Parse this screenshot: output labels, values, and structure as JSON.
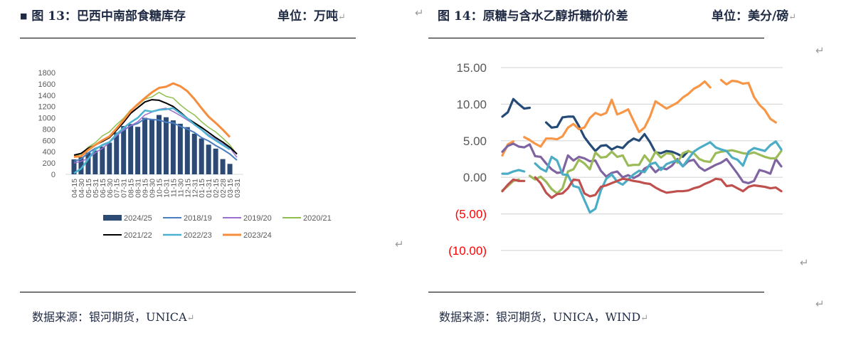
{
  "left_panel": {
    "title": "图 13：巴西中南部食糖库存",
    "unit": "单位：万吨",
    "source": "数据来源：银河期货，UNICA"
  },
  "right_panel": {
    "title": "图 14：原糖与含水乙醇折糖价价差",
    "unit": "单位：美分/磅",
    "source": "数据来源：银河期货，UNICA，WIND"
  },
  "return_mark": "↵",
  "bullet": "■",
  "chart_data": [
    {
      "type": "bar+line",
      "title": "巴西中南部食糖库存",
      "unit": "万吨",
      "ylim": [
        0,
        1800
      ],
      "yticks": [
        0,
        200,
        400,
        600,
        800,
        1000,
        1200,
        1400,
        1600,
        1800
      ],
      "grid": false,
      "legend_position": "bottom",
      "categories": [
        "04-15",
        "04-30",
        "05-15",
        "05-31",
        "06-15",
        "06-30",
        "07-15",
        "07-31",
        "08-15",
        "08-31",
        "09-15",
        "09-30",
        "10-15",
        "10-31",
        "11-15",
        "11-30",
        "12-15",
        "12-31",
        "01-15",
        "01-31",
        "02-15",
        "02-28",
        "03-15",
        "03-31"
      ],
      "series": [
        {
          "name": "2024/25",
          "kind": "bar",
          "color": "#2c4a73",
          "values": [
            265,
            310,
            385,
            420,
            490,
            560,
            740,
            855,
            890,
            840,
            1000,
            980,
            1050,
            1010,
            955,
            895,
            835,
            720,
            635,
            525,
            455,
            270,
            185,
            null
          ]
        },
        {
          "name": "2018/19",
          "kind": "line",
          "color": "#4a7ebf",
          "width": 2,
          "values": [
            230,
            270,
            380,
            460,
            510,
            570,
            690,
            780,
            860,
            900,
            985,
            970,
            960,
            920,
            910,
            850,
            800,
            740,
            650,
            590,
            510,
            440,
            360,
            250
          ]
        },
        {
          "name": "2019/20",
          "kind": "line",
          "color": "#9b6fd0",
          "width": 1.5,
          "values": [
            200,
            230,
            280,
            380,
            460,
            560,
            680,
            790,
            860,
            930,
            1050,
            1100,
            1150,
            1170,
            1110,
            1040,
            960,
            880,
            790,
            700,
            620,
            540,
            470,
            300
          ]
        },
        {
          "name": "2020/21",
          "kind": "line",
          "color": "#8fbf4e",
          "width": 1.5,
          "values": [
            320,
            360,
            480,
            560,
            680,
            750,
            880,
            990,
            1140,
            1220,
            1330,
            1370,
            1450,
            1380,
            1350,
            1230,
            1130,
            1050,
            930,
            830,
            750,
            640,
            520,
            350
          ]
        },
        {
          "name": "2021/22",
          "kind": "line",
          "color": "#000000",
          "width": 2,
          "values": [
            340,
            370,
            460,
            520,
            580,
            650,
            780,
            920,
            1080,
            1180,
            1280,
            1320,
            1310,
            1260,
            1200,
            1100,
            990,
            910,
            830,
            740,
            650,
            570,
            480,
            360
          ]
        },
        {
          "name": "2022/23",
          "kind": "line",
          "color": "#4bb3d1",
          "width": 2.5,
          "values": [
            20,
            100,
            270,
            440,
            520,
            570,
            710,
            820,
            920,
            1000,
            1130,
            1110,
            1140,
            1150,
            1170,
            1080,
            990,
            880,
            790,
            680,
            600,
            520,
            440,
            null
          ]
        },
        {
          "name": "2023/24",
          "kind": "line",
          "color": "#f58d3d",
          "width": 3,
          "values": [
            310,
            320,
            430,
            520,
            600,
            670,
            810,
            960,
            1120,
            1240,
            1350,
            1450,
            1530,
            1550,
            1610,
            1560,
            1470,
            1330,
            1170,
            1020,
            910,
            790,
            660,
            null
          ]
        }
      ]
    },
    {
      "type": "line",
      "title": "原糖与含水乙醇折糖价价差",
      "unit": "美分/磅",
      "ylim": [
        -10,
        15
      ],
      "yticks": [
        15,
        10,
        5,
        0,
        -5,
        -10
      ],
      "ytick_labels": [
        "15.00",
        "10.00",
        "5.00",
        "0.00",
        "(5.00)",
        "(10.00)"
      ],
      "negative_label_color": "#ff0000",
      "grid": true,
      "x_count": 52,
      "series": [
        {
          "name": "series-navy",
          "color": "#254a76",
          "values": [
            8.3,
            8.9,
            10.7,
            10.0,
            9.4,
            9.5,
            null,
            null,
            7.5,
            6.8,
            6.9,
            8.2,
            8.3,
            8.3,
            7.0,
            5.5,
            4.5,
            3.6,
            4.3,
            4.4,
            3.8,
            4.2,
            4.0,
            4.8,
            5.3,
            5.0,
            5.9,
            4.8,
            3.4,
            3.3,
            3.6,
            3.5,
            3.2,
            2.8,
            3.6,
            null,
            null,
            null,
            null,
            null,
            null,
            null,
            null,
            null,
            null,
            null,
            null,
            null,
            null,
            null,
            null,
            null
          ]
        },
        {
          "name": "series-orange",
          "color": "#f79646",
          "values": [
            3.0,
            4.5,
            4.9,
            null,
            5.5,
            5.1,
            4.6,
            4.2,
            5.3,
            5.3,
            5.2,
            5.6,
            6.8,
            7.3,
            6.6,
            6.8,
            8.1,
            8.8,
            8.5,
            8.8,
            10.6,
            8.6,
            8.9,
            9.3,
            7.7,
            6.2,
            6.8,
            8.3,
            10.4,
            9.9,
            9.4,
            9.8,
            10.2,
            10.9,
            11.4,
            12.1,
            12.5,
            13.1,
            12.3,
            null,
            13.3,
            12.7,
            13.2,
            13.1,
            12.8,
            12.9,
            11.0,
            9.9,
            9.2,
            8.0,
            7.5,
            null
          ]
        },
        {
          "name": "series-purple",
          "color": "#8064a2",
          "values": [
            3.5,
            4.3,
            4.6,
            4.2,
            4.1,
            4.5,
            2.9,
            2.8,
            1.9,
            1.1,
            0.6,
            0.7,
            3.0,
            2.3,
            2.8,
            2.6,
            2.2,
            2.3,
            0.9,
            0.1,
            0.6,
            0.8,
            0.0,
            0.3,
            -0.1,
            0.3,
            1.2,
            1.6,
            0.7,
            1.3,
            1.1,
            1.6,
            2.5,
            1.5,
            2.2,
            2.4,
            1.4,
            0.9,
            1.3,
            1.7,
            2.0,
            2.5,
            1.5,
            0.5,
            -0.6,
            -0.8,
            -0.5,
            1.0,
            0.8,
            0.5,
            2.5,
            1.5
          ]
        },
        {
          "name": "series-green",
          "color": "#9bbb59",
          "values": [
            -1.8,
            -1.2,
            -0.5,
            -0.3,
            null,
            0.2,
            -0.3,
            0.1,
            -0.6,
            -1.6,
            -2.2,
            -1.5,
            0.8,
            1.1,
            2.4,
            1.9,
            1.1,
            3.4,
            2.7,
            2.8,
            3.5,
            2.8,
            3.0,
            1.6,
            1.7,
            1.7,
            3.0,
            2.1,
            3.5,
            2.7,
            3.3,
            3.2,
            2.0,
            3.3,
            3.6,
            3.3,
            2.5,
            2.2,
            2.1,
            3.3,
            3.5,
            3.6,
            3.7,
            3.5,
            3.3,
            3.2,
            3.4,
            3.1,
            2.8,
            2.6,
            2.6,
            3.6
          ]
        },
        {
          "name": "series-teal",
          "color": "#4bacc6",
          "values": [
            0.5,
            0.5,
            0.8,
            1.0,
            0.8,
            null,
            1.9,
            1.2,
            0.8,
            2.8,
            2.3,
            0.4,
            0.3,
            -1.2,
            -1.4,
            -3.1,
            -4.8,
            -4.3,
            -1.8,
            -0.2,
            0.4,
            -0.6,
            -1.0,
            -0.3,
            0.4,
            0.9,
            0.7,
            1.8,
            2.0,
            1.0,
            1.8,
            2.1,
            2.3,
            1.5,
            2.5,
            3.5,
            4.0,
            4.4,
            4.8,
            4.1,
            3.8,
            3.6,
            2.7,
            2.4,
            1.6,
            3.5,
            4.0,
            3.8,
            3.6,
            4.4,
            4.9,
            3.8
          ]
        },
        {
          "name": "series-red",
          "color": "#c0504d",
          "values": [
            -1.9,
            -1.0,
            -0.3,
            -0.5,
            -0.5,
            null,
            0.0,
            -0.8,
            -2.1,
            -2.8,
            -2.3,
            -2.2,
            -1.5,
            -0.3,
            -0.4,
            -2.2,
            -2.6,
            -2.4,
            -1.3,
            -1.1,
            -0.8,
            -0.5,
            -0.2,
            -0.3,
            -0.5,
            -0.6,
            -0.8,
            -0.9,
            -1.4,
            -1.8,
            -2.1,
            -2.0,
            -1.9,
            -1.9,
            -1.8,
            -1.5,
            -1.3,
            -0.9,
            -0.6,
            -0.2,
            -0.3,
            -1.2,
            -1.1,
            -1.5,
            -1.9,
            -1.3,
            -1.1,
            -1.2,
            -1.3,
            -1.5,
            -1.4,
            -1.9
          ]
        }
      ]
    }
  ]
}
